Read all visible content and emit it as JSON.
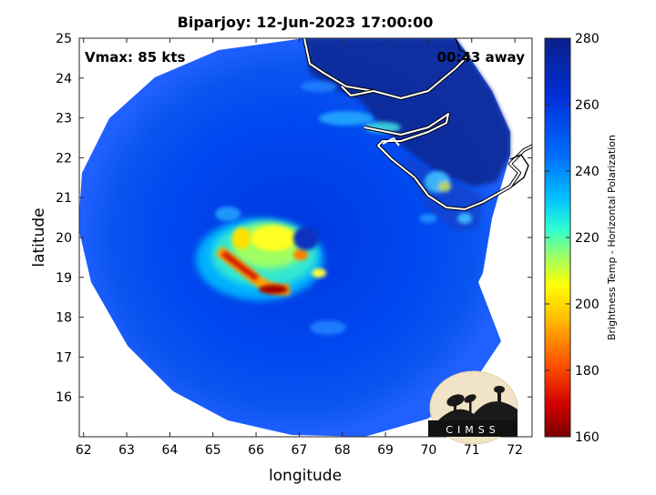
{
  "title": "Biparjoy: 12-Jun-2023 17:00:00",
  "vmax_label": "Vmax: 85 kts",
  "away_label": "00:43 away",
  "xlabel": "longitude",
  "ylabel": "latitude",
  "colorbar_label": "Brightness Temp - Horizontal Polarization",
  "logo_text": "CIMSS",
  "x_ticks": [
    "62",
    "63",
    "64",
    "65",
    "66",
    "67",
    "68",
    "69",
    "70",
    "71",
    "72"
  ],
  "y_ticks": [
    "16",
    "17",
    "18",
    "19",
    "20",
    "21",
    "22",
    "23",
    "24",
    "25"
  ],
  "colorbar_ticks": [
    "160",
    "180",
    "200",
    "220",
    "240",
    "260",
    "280"
  ],
  "map": {
    "xlim": [
      61.9,
      72.4
    ],
    "ylim": [
      15.0,
      25.0
    ],
    "colorbar_range": [
      160,
      280
    ],
    "storm_center": {
      "lon": 67.3,
      "lat": 20.0
    }
  },
  "colors": {
    "colormap": [
      "#7a0000",
      "#d00000",
      "#ff5000",
      "#ffc000",
      "#ffff00",
      "#a0ff60",
      "#30ffd0",
      "#00c0ff",
      "#0070ff",
      "#0030d8",
      "#0a1f8a"
    ],
    "coast": "#ffffff"
  }
}
